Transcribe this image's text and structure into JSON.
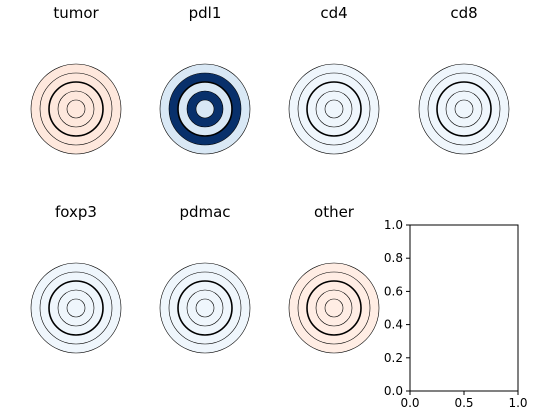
{
  "chart_data": [
    {
      "type": "concentric-rings",
      "title": "tumor",
      "colormap": "Reds",
      "ring_values": [
        0.08,
        0.08,
        0.08,
        0.08,
        0.08,
        0.08
      ]
    },
    {
      "type": "concentric-rings",
      "title": "pdl1",
      "colormap": "Blues",
      "ring_values": [
        0.15,
        0.15,
        0.15,
        1.0,
        0.15,
        0.15
      ]
    },
    {
      "type": "concentric-rings",
      "title": "cd4",
      "colormap": "Blues",
      "ring_values": [
        0.04,
        0.04,
        0.04,
        0.04,
        0.04,
        0.04
      ]
    },
    {
      "type": "concentric-rings",
      "title": "cd8",
      "colormap": "Blues",
      "ring_values": [
        0.04,
        0.04,
        0.04,
        0.04,
        0.04,
        0.04
      ]
    },
    {
      "type": "concentric-rings",
      "title": "foxp3",
      "colormap": "Blues",
      "ring_values": [
        0.04,
        0.04,
        0.04,
        0.04,
        0.04,
        0.04
      ]
    },
    {
      "type": "concentric-rings",
      "title": "pdmac",
      "colormap": "Blues",
      "ring_values": [
        0.04,
        0.04,
        0.04,
        0.04,
        0.04,
        0.04
      ]
    },
    {
      "type": "concentric-rings",
      "title": "other",
      "colormap": "Reds",
      "ring_values": [
        0.05,
        0.05,
        0.05,
        0.05,
        0.05,
        0.05
      ]
    },
    {
      "type": "empty-axes",
      "title": "",
      "xlim": [
        0,
        1
      ],
      "ylim": [
        0,
        1
      ],
      "x_ticks": [
        "0.0",
        "0.5",
        "1.0"
      ],
      "y_ticks": [
        "0.0",
        "0.2",
        "0.4",
        "0.6",
        "0.8",
        "1.0"
      ],
      "x_tick_values": [
        0,
        0.5,
        1
      ],
      "y_tick_values": [
        0,
        0.2,
        0.4,
        0.6,
        0.8,
        1
      ]
    }
  ]
}
